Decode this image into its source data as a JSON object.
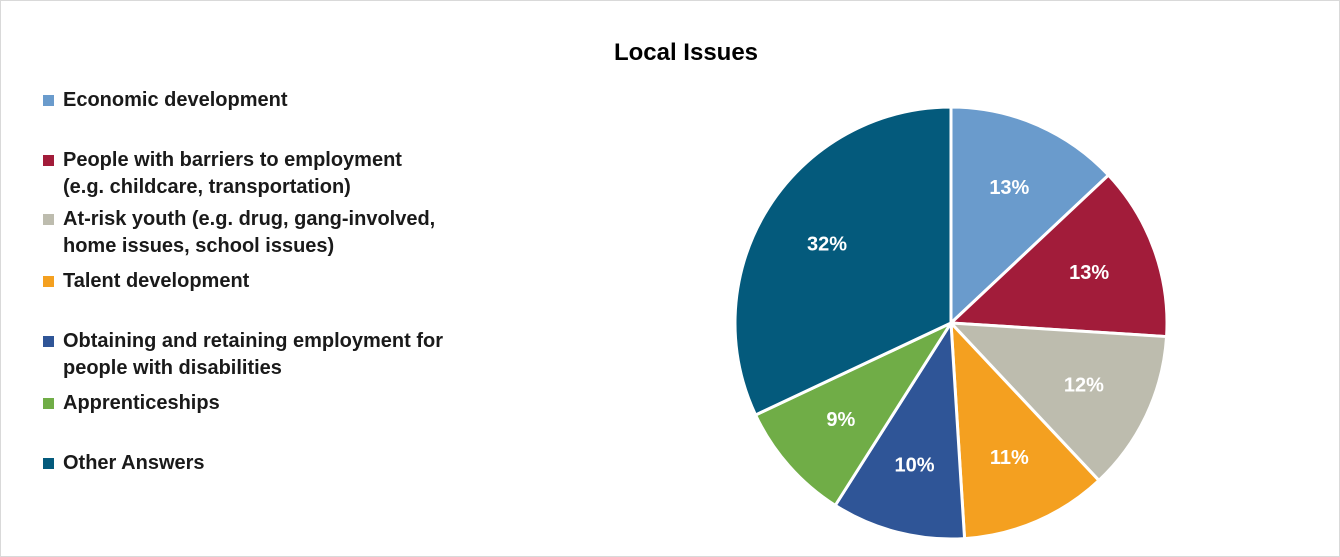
{
  "chart_data": {
    "type": "pie",
    "title": "Local Issues",
    "legend_position": "left",
    "slices": [
      {
        "label": "Economic development",
        "value": 13,
        "display": "13%",
        "color": "#6a9bcc"
      },
      {
        "label": "People with barriers  to employment\n(e.g. childcare, transportation)",
        "value": 13,
        "display": "13%",
        "color": "#a21c3a"
      },
      {
        "label": "At-risk youth (e.g. drug, gang-involved,\nhome issues, school issues)",
        "value": 12,
        "display": "12%",
        "color": "#bdbcae"
      },
      {
        "label": "Talent development",
        "value": 11,
        "display": "11%",
        "color": "#f4a020"
      },
      {
        "label": "Obtaining and retaining employment for\npeople with disabilities",
        "value": 10,
        "display": "10%",
        "color": "#2f5597"
      },
      {
        "label": "Apprenticeships",
        "value": 9,
        "display": "9%",
        "color": "#70ad47"
      },
      {
        "label": "Other Answers",
        "value": 32,
        "display": "32%",
        "color": "#045a7c"
      }
    ]
  }
}
